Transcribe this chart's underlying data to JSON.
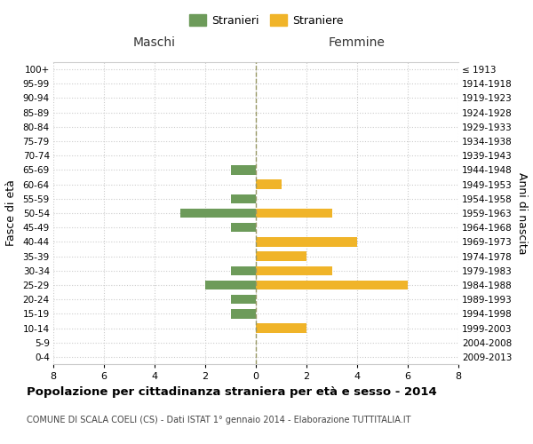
{
  "age_groups": [
    "0-4",
    "5-9",
    "10-14",
    "15-19",
    "20-24",
    "25-29",
    "30-34",
    "35-39",
    "40-44",
    "45-49",
    "50-54",
    "55-59",
    "60-64",
    "65-69",
    "70-74",
    "75-79",
    "80-84",
    "85-89",
    "90-94",
    "95-99",
    "100+"
  ],
  "birth_years": [
    "2009-2013",
    "2004-2008",
    "1999-2003",
    "1994-1998",
    "1989-1993",
    "1984-1988",
    "1979-1983",
    "1974-1978",
    "1969-1973",
    "1964-1968",
    "1959-1963",
    "1954-1958",
    "1949-1953",
    "1944-1948",
    "1939-1943",
    "1934-1938",
    "1929-1933",
    "1924-1928",
    "1919-1923",
    "1914-1918",
    "≤ 1913"
  ],
  "males": [
    0,
    0,
    0,
    1,
    1,
    2,
    1,
    0,
    0,
    1,
    3,
    1,
    0,
    1,
    0,
    0,
    0,
    0,
    0,
    0,
    0
  ],
  "females": [
    0,
    0,
    2,
    0,
    0,
    6,
    3,
    2,
    4,
    0,
    3,
    0,
    1,
    0,
    0,
    0,
    0,
    0,
    0,
    0,
    0
  ],
  "male_color": "#6d9b5a",
  "female_color": "#f0b429",
  "male_label": "Stranieri",
  "female_label": "Straniere",
  "title": "Popolazione per cittadinanza straniera per età e sesso - 2014",
  "subtitle": "COMUNE DI SCALA COELI (CS) - Dati ISTAT 1° gennaio 2014 - Elaborazione TUTTITALIA.IT",
  "header_left": "Maschi",
  "header_right": "Femmine",
  "ylabel_left": "Fasce di età",
  "ylabel_right": "Anni di nascita",
  "xlim": 8,
  "background_color": "#ffffff",
  "grid_color": "#cccccc",
  "center_line_color": "#999966"
}
